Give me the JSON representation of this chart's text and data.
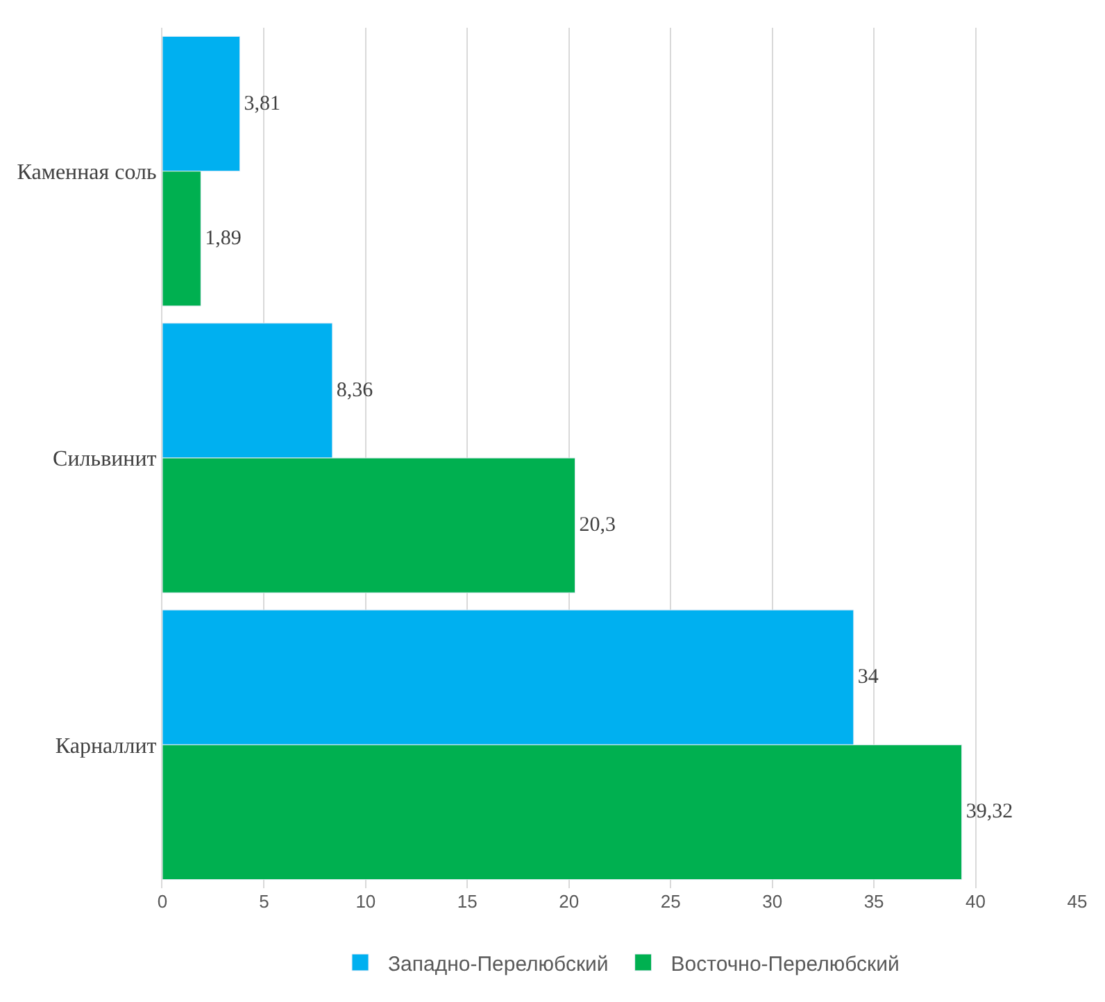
{
  "chart_data": {
    "type": "bar",
    "orientation": "horizontal",
    "categories": [
      "Каменная соль",
      "Сильвинит",
      "Карналлит"
    ],
    "series": [
      {
        "name": "Западно-Перелюбский",
        "color": "#00b0f0",
        "values": [
          3.81,
          8.36,
          34
        ],
        "value_labels": [
          "3,81",
          "8,36",
          "34"
        ]
      },
      {
        "name": "Восточно-Перелюбский",
        "color": "#00b050",
        "values": [
          1.89,
          20.3,
          39.32
        ],
        "value_labels": [
          "1,89",
          "20,3",
          "39,32"
        ]
      }
    ],
    "xlim": [
      0,
      45
    ],
    "xticks": [
      0,
      5,
      10,
      15,
      20,
      25,
      30,
      35,
      40,
      45
    ],
    "grid": "x",
    "legend": "bottom"
  }
}
